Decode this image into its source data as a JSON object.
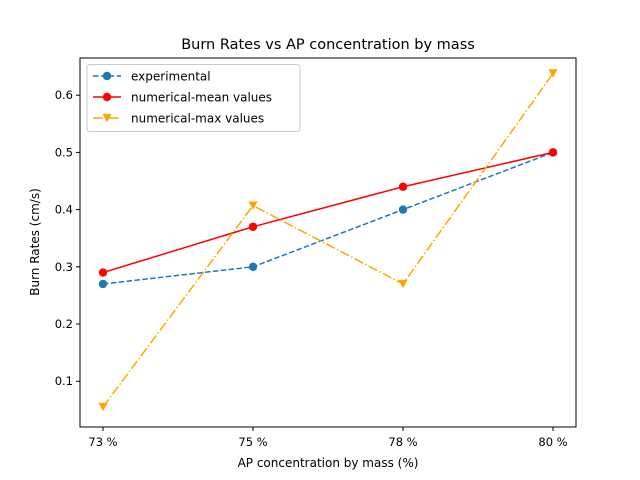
{
  "chart_data": {
    "type": "line",
    "title": "Burn Rates vs AP concentration by mass",
    "xlabel": "AP concentration by mass (%)",
    "ylabel": "Burn Rates (cm/s)",
    "categories": [
      "73 %",
      "75 %",
      "78 %",
      "80 %"
    ],
    "ylim": [
      0.02,
      0.665
    ],
    "yticks": [
      0.1,
      0.2,
      0.3,
      0.4,
      0.5,
      0.6
    ],
    "grid": false,
    "legend_position": "upper-left",
    "series": [
      {
        "name": "experimental",
        "values": [
          0.27,
          0.3,
          0.4,
          0.5
        ],
        "color": "#1f77b4",
        "linestyle": "dashed",
        "marker": "circle"
      },
      {
        "name": "numerical-mean values",
        "values": [
          0.29,
          0.37,
          0.44,
          0.5
        ],
        "color": "#ff0000",
        "linestyle": "solid",
        "marker": "circle"
      },
      {
        "name": "numerical-max values",
        "values": [
          0.055,
          0.407,
          0.27,
          0.638
        ],
        "color": "#ffa500",
        "linestyle": "dashdot",
        "marker": "triangle-down"
      }
    ]
  }
}
